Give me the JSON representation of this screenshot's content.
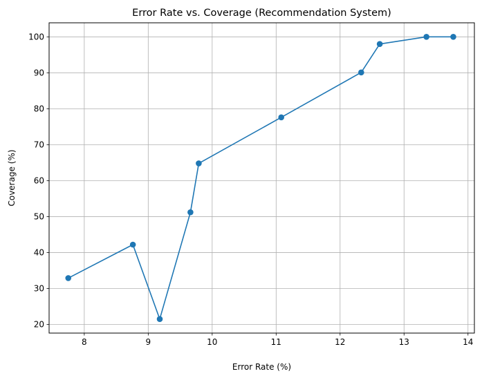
{
  "chart_data": {
    "type": "line",
    "title": "Error Rate vs. Coverage (Recommendation System)",
    "xlabel": "Error Rate (%)",
    "ylabel": "Coverage (%)",
    "xlim": [
      7.45,
      14.1
    ],
    "ylim": [
      17.6,
      103.9
    ],
    "xticks": [
      8,
      9,
      10,
      11,
      12,
      13,
      14
    ],
    "yticks": [
      20,
      30,
      40,
      50,
      60,
      70,
      80,
      90,
      100
    ],
    "grid": true,
    "marker": "circle",
    "series": [
      {
        "name": "Coverage",
        "color": "#1f77b4",
        "points": [
          {
            "x": 7.75,
            "y": 32.9
          },
          {
            "x": 8.76,
            "y": 42.2
          },
          {
            "x": 9.18,
            "y": 21.5
          },
          {
            "x": 9.66,
            "y": 51.2
          },
          {
            "x": 9.79,
            "y": 64.8
          },
          {
            "x": 11.08,
            "y": 77.6
          },
          {
            "x": 12.33,
            "y": 90.1
          },
          {
            "x": 12.62,
            "y": 98.0
          },
          {
            "x": 13.35,
            "y": 100.0
          },
          {
            "x": 13.77,
            "y": 100.0
          }
        ]
      }
    ]
  }
}
